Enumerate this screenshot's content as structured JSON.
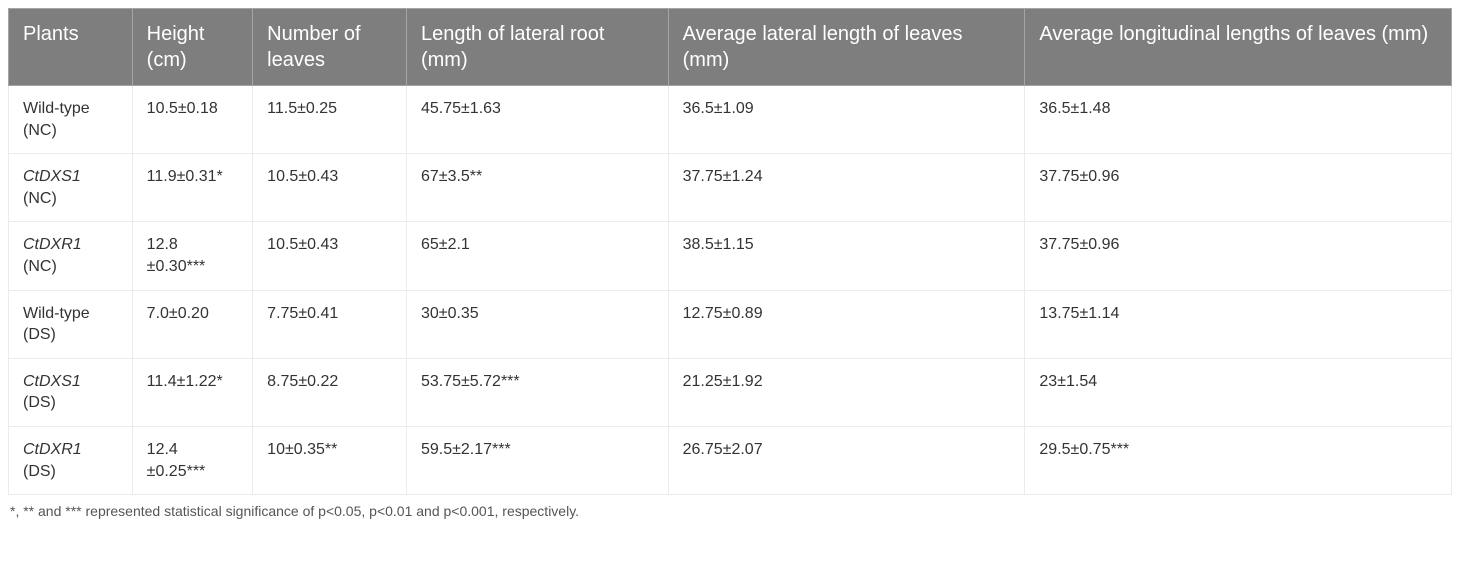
{
  "table": {
    "columns": [
      {
        "label": "Plants",
        "width": "7.8%"
      },
      {
        "label": "Height (cm)",
        "width": "7.6%"
      },
      {
        "label": "Number of leaves",
        "width": "9.7%"
      },
      {
        "label": "Length of lateral root (mm)",
        "width": "16.5%"
      },
      {
        "label": "Average lateral length of leaves (mm)",
        "width": "22.5%"
      },
      {
        "label": "Average longitudinal lengths of leaves (mm)",
        "width": "26.9%"
      }
    ],
    "rows": [
      {
        "plant_prefix": "Wild-type",
        "italic": false,
        "paren": "(NC)",
        "height": "10.5±0.18",
        "num_leaves": "11.5±0.25",
        "lateral_root": "45.75±1.63",
        "avg_lateral": "36.5±1.09",
        "avg_long": "36.5±1.48"
      },
      {
        "plant_prefix": "CtDXS1",
        "italic": true,
        "paren": "(NC)",
        "height": "11.9±0.31*",
        "num_leaves": "10.5±0.43",
        "lateral_root": "67±3.5**",
        "avg_lateral": "37.75±1.24",
        "avg_long": "37.75±0.96"
      },
      {
        "plant_prefix": "CtDXR1",
        "italic": true,
        "paren": "(NC)",
        "height": "12.8 ±0.30***",
        "num_leaves": "10.5±0.43",
        "lateral_root": "65±2.1",
        "avg_lateral": "38.5±1.15",
        "avg_long": "37.75±0.96"
      },
      {
        "plant_prefix": "Wild-type",
        "italic": false,
        "paren": "(DS)",
        "height": "7.0±0.20",
        "num_leaves": "7.75±0.41",
        "lateral_root": "30±0.35",
        "avg_lateral": "12.75±0.89",
        "avg_long": "13.75±1.14"
      },
      {
        "plant_prefix": "CtDXS1",
        "italic": true,
        "paren": "(DS)",
        "height": "11.4±1.22*",
        "num_leaves": "8.75±0.22",
        "lateral_root": "53.75±5.72***",
        "avg_lateral": "21.25±1.92",
        "avg_long": "23±1.54"
      },
      {
        "plant_prefix": "CtDXR1",
        "italic": true,
        "paren": "(DS)",
        "height": "12.4 ±0.25***",
        "num_leaves": "10±0.35**",
        "lateral_root": "59.5±2.17***",
        "avg_lateral": "26.75±2.07",
        "avg_long": "29.5±0.75***"
      }
    ]
  },
  "caption": "*, ** and *** represented statistical significance of p<0.05, p<0.01 and p<0.001, respectively."
}
